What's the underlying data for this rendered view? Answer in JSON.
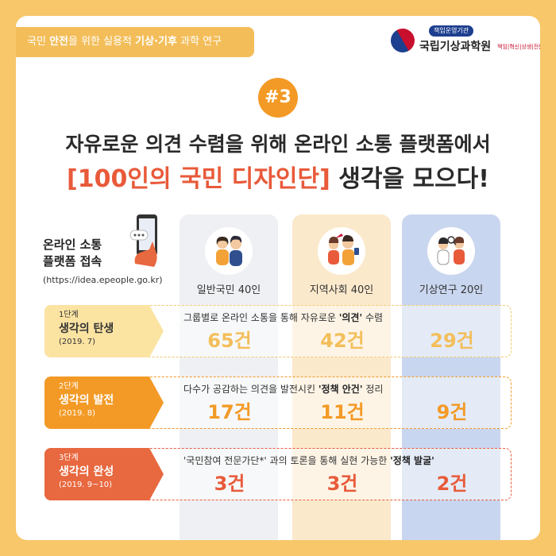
{
  "banner": {
    "pre": "국민 ",
    "bold1": "안전",
    "mid": "을 위한 실용적 ",
    "bold2": "기상·기후",
    "post": " 과학 연구"
  },
  "logo": {
    "badge": "책임운영기관",
    "name": "국립기상과학원",
    "tagline": "책임|혁신|상생|전문"
  },
  "number_badge": "#3",
  "headline": {
    "line1": "자유로운 의견 수렴을 위해 온라인 소통 플랫폼에서",
    "highlight": "[100인의 국민 디자인단]",
    "line2_rest": " 생각을 모으다!"
  },
  "access": {
    "title_line1": "온라인 소통",
    "title_line2": "플랫폼 접속",
    "url": "(https://idea.epeople.go.kr)"
  },
  "groups": [
    {
      "label": "일반국민 40인"
    },
    {
      "label": "지역사회 40인"
    },
    {
      "label": "기상연구 20인"
    }
  ],
  "stages": [
    {
      "step": "1단계",
      "name": "생각의 탄생",
      "date": "(2019. 7)",
      "desc_pre": "그룹별로 온라인 소통을 통해 자유로운 ",
      "desc_bold": "'의견'",
      "desc_post": " 수렴",
      "counts": [
        "65건",
        "42건",
        "29건"
      ]
    },
    {
      "step": "2단계",
      "name": "생각의 발전",
      "date": "(2019. 8)",
      "desc_pre": "다수가 공감하는 의견을 발전시킨 ",
      "desc_bold": "'정책 안건'",
      "desc_post": " 정리",
      "counts": [
        "17건",
        "11건",
        "9건"
      ]
    },
    {
      "step": "3단계",
      "name": "생각의 완성",
      "date": "(2019. 9~10)",
      "desc_pre": "'국민참여 전문가단*' 과의 토론을 통해 실현 가능한 ",
      "desc_bold": "'정책 발굴'",
      "desc_post": "",
      "counts": [
        "3건",
        "3건",
        "2건"
      ]
    }
  ],
  "colors": {
    "background": "#f7c76a",
    "orange": "#f39a26",
    "red": "#e85a3a",
    "yellow": "#f3be5a"
  }
}
